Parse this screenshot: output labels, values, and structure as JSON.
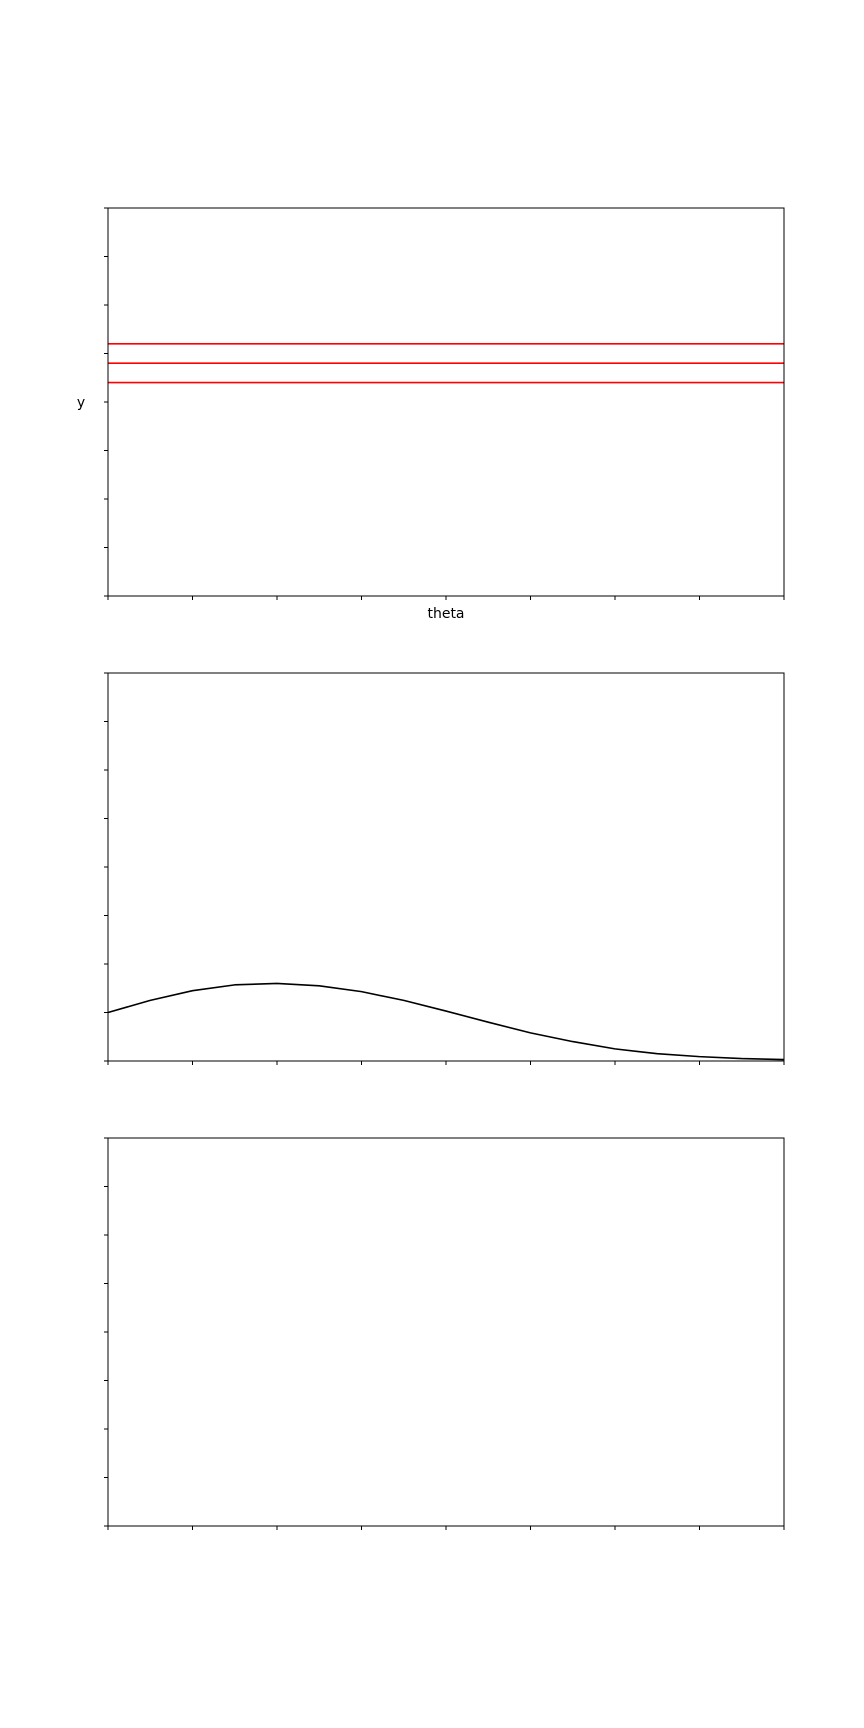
{
  "chart_data": [
    {
      "type": "line",
      "title": "",
      "xlabel": "theta",
      "ylabel": "y",
      "xlim": [
        0,
        8
      ],
      "ylim": [
        0,
        8
      ],
      "x_tick_values": [
        0,
        1,
        2,
        3,
        4,
        5,
        6,
        7,
        8
      ],
      "y_tick_values": [
        0,
        1,
        2,
        3,
        4,
        5,
        6,
        7,
        8
      ],
      "tick_labels_visible": false,
      "grid": false,
      "series": [
        {
          "color": "#ff0000",
          "x": [
            0,
            8
          ],
          "y": [
            5.2,
            5.2
          ]
        },
        {
          "color": "#ff0000",
          "x": [
            0,
            8
          ],
          "y": [
            4.8,
            4.8
          ]
        },
        {
          "color": "#ff0000",
          "x": [
            0,
            8
          ],
          "y": [
            4.4,
            4.4
          ]
        }
      ]
    },
    {
      "type": "line",
      "title": "",
      "xlabel": "",
      "ylabel": "",
      "xlim": [
        0,
        8
      ],
      "ylim": [
        0,
        8
      ],
      "x_tick_values": [
        0,
        1,
        2,
        3,
        4,
        5,
        6,
        7,
        8
      ],
      "y_tick_values": [
        0,
        1,
        2,
        3,
        4,
        5,
        6,
        7,
        8
      ],
      "tick_labels_visible": false,
      "grid": false,
      "series": [
        {
          "color": "#000000",
          "x": [
            0,
            0.5,
            1,
            1.5,
            2,
            2.5,
            3,
            3.5,
            4,
            4.5,
            5,
            5.5,
            6,
            6.5,
            7,
            7.5,
            8
          ],
          "y": [
            1.0,
            1.25,
            1.45,
            1.57,
            1.6,
            1.55,
            1.43,
            1.25,
            1.03,
            0.8,
            0.58,
            0.4,
            0.25,
            0.15,
            0.09,
            0.05,
            0.03
          ]
        }
      ]
    },
    {
      "type": "line",
      "title": "",
      "xlabel": "",
      "ylabel": "",
      "xlim": [
        0,
        8
      ],
      "ylim": [
        0,
        8
      ],
      "x_tick_values": [
        0,
        1,
        2,
        3,
        4,
        5,
        6,
        7,
        8
      ],
      "y_tick_values": [
        0,
        1,
        2,
        3,
        4,
        5,
        6,
        7,
        8
      ],
      "tick_labels_visible": false,
      "grid": false,
      "series": []
    }
  ]
}
